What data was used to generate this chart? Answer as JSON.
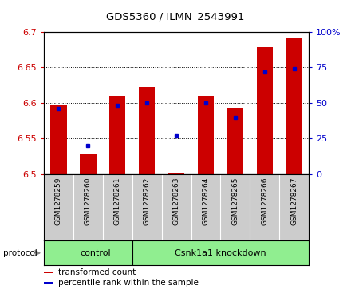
{
  "title": "GDS5360 / ILMN_2543991",
  "samples": [
    "GSM1278259",
    "GSM1278260",
    "GSM1278261",
    "GSM1278262",
    "GSM1278263",
    "GSM1278264",
    "GSM1278265",
    "GSM1278266",
    "GSM1278267"
  ],
  "red_values": [
    6.598,
    6.528,
    6.61,
    6.622,
    6.502,
    6.61,
    6.593,
    6.678,
    6.692
  ],
  "blue_values_pct": [
    46,
    20,
    48,
    50,
    27,
    50,
    40,
    72,
    74
  ],
  "ylim_left": [
    6.5,
    6.7
  ],
  "ylim_right": [
    0,
    100
  ],
  "yticks_left": [
    6.5,
    6.55,
    6.6,
    6.65,
    6.7
  ],
  "yticks_right": [
    0,
    25,
    50,
    75,
    100
  ],
  "ytick_labels_left": [
    "6.5",
    "6.55",
    "6.6",
    "6.65",
    "6.7"
  ],
  "ytick_labels_right": [
    "0",
    "25",
    "50",
    "75",
    "100%"
  ],
  "control_samples": 3,
  "groups": [
    {
      "label": "control",
      "color": "#90ee90"
    },
    {
      "label": "Csnk1a1 knockdown",
      "color": "#90ee90"
    }
  ],
  "protocol_label": "protocol",
  "bar_color": "#cc0000",
  "dot_color": "#0000cc",
  "bar_width": 0.55,
  "bar_baseline": 6.5,
  "legend_items": [
    {
      "label": "transformed count",
      "color": "#cc0000"
    },
    {
      "label": "percentile rank within the sample",
      "color": "#0000cc"
    }
  ],
  "tick_label_color_left": "#cc0000",
  "tick_label_color_right": "#0000cc",
  "xticklabel_bg": "#cccccc"
}
